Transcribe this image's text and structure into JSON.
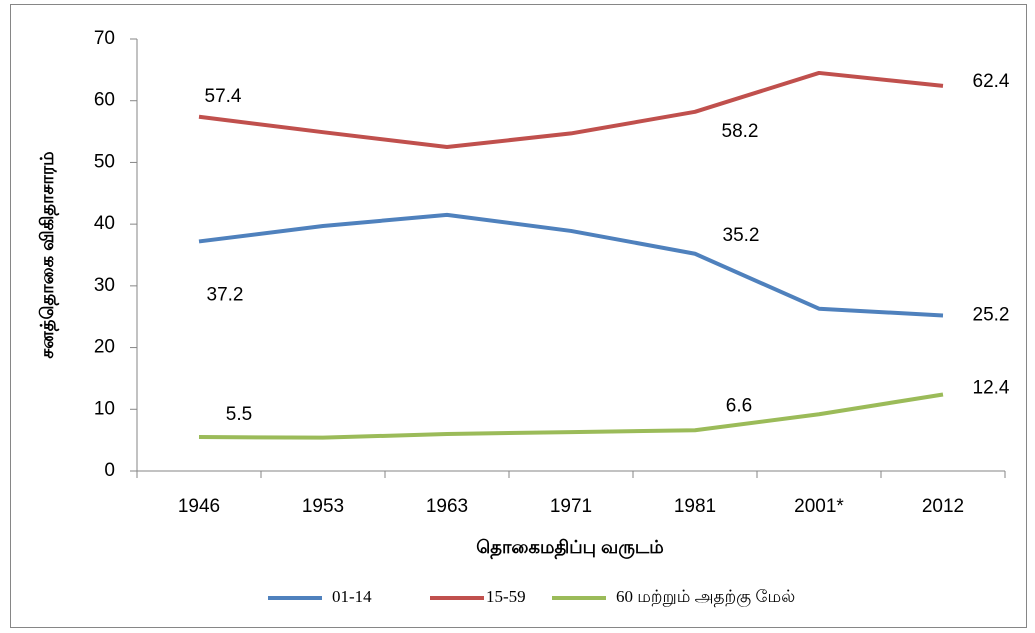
{
  "chart_data": {
    "type": "line",
    "ylabel": "சனத்தொகை விகிதாசாரம்",
    "xlabel": "தொகைமதிப்பு வருடம்",
    "categories": [
      "1946",
      "1953",
      "1963",
      "1971",
      "1981",
      "2001*",
      "2012"
    ],
    "series": [
      {
        "name": "01-14",
        "color": "#4f81bd",
        "values": [
          37.2,
          39.7,
          41.5,
          38.9,
          35.2,
          26.3,
          25.2
        ],
        "value_labels": [
          "37.2",
          null,
          null,
          null,
          "35.2",
          null,
          "25.2"
        ]
      },
      {
        "name": "15-59",
        "color": "#c0504d",
        "values": [
          57.4,
          54.9,
          52.5,
          54.7,
          58.2,
          64.5,
          62.4
        ],
        "value_labels": [
          "57.4",
          null,
          null,
          null,
          "58.2",
          null,
          "62.4"
        ]
      },
      {
        "name": "60 மற்றும் அதற்கு மேல்",
        "color": "#9bbb59",
        "values": [
          5.5,
          5.4,
          6.0,
          6.3,
          6.6,
          9.2,
          12.4
        ],
        "value_labels": [
          "5.5",
          null,
          null,
          null,
          "6.6",
          null,
          "12.4"
        ]
      }
    ],
    "ylim": [
      0,
      70
    ],
    "yticks": [
      0,
      10,
      20,
      30,
      40,
      50,
      60,
      70
    ],
    "grid": false,
    "legend": "bottom"
  }
}
